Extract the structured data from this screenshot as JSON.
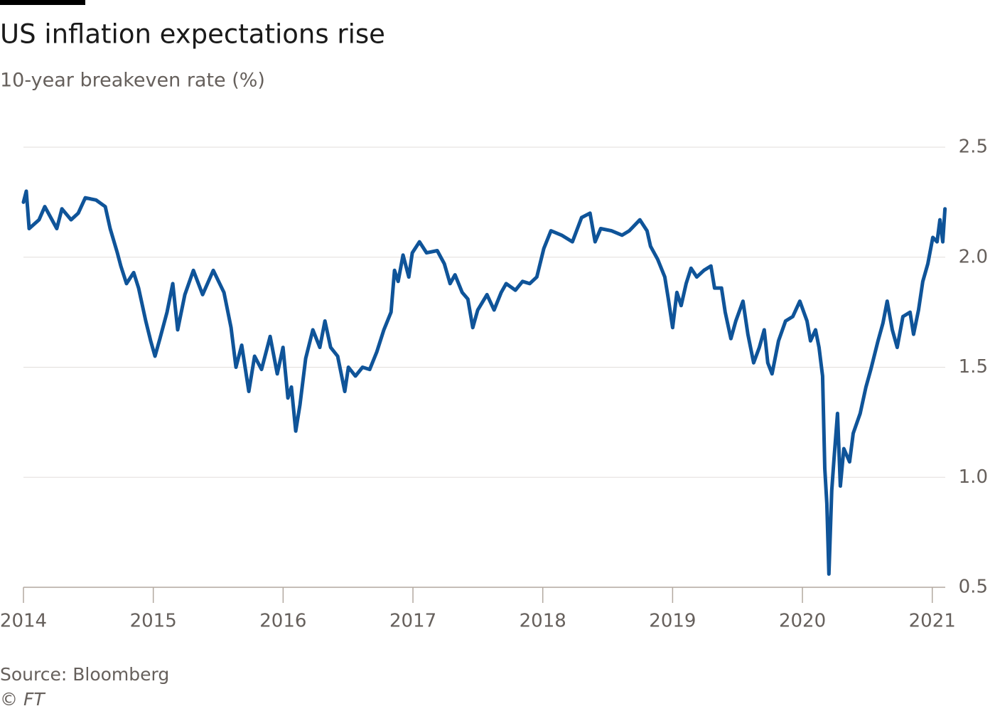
{
  "chart_data": {
    "type": "line",
    "title": "US inflation expectations rise",
    "subtitle": "10-year breakeven rate (%)",
    "source": "Source: Bloomberg",
    "credit": "© FT",
    "x": [
      2014.0,
      2014.022,
      2014.044,
      2014.12,
      2014.164,
      2014.257,
      2014.296,
      2014.367,
      2014.422,
      2014.476,
      2014.559,
      2014.63,
      2014.668,
      2014.723,
      2014.75,
      2014.794,
      2014.849,
      2014.887,
      2014.942,
      2014.98,
      2015.013,
      2015.051,
      2015.106,
      2015.15,
      2015.188,
      2015.243,
      2015.309,
      2015.38,
      2015.462,
      2015.544,
      2015.599,
      2015.637,
      2015.681,
      2015.736,
      2015.78,
      2015.834,
      2015.9,
      2015.955,
      2015.999,
      2016.037,
      2016.064,
      2016.097,
      2016.13,
      2016.174,
      2016.229,
      2016.283,
      2016.322,
      2016.366,
      2016.42,
      2016.475,
      2016.503,
      2016.557,
      2016.612,
      2016.667,
      2016.722,
      2016.776,
      2016.831,
      2016.858,
      2016.886,
      2016.924,
      2016.968,
      2016.995,
      2017.05,
      2017.105,
      2017.187,
      2017.242,
      2017.286,
      2017.324,
      2017.379,
      2017.423,
      2017.461,
      2017.499,
      2017.57,
      2017.625,
      2017.68,
      2017.718,
      2017.789,
      2017.844,
      2017.899,
      2017.954,
      2018.008,
      2018.063,
      2018.145,
      2018.228,
      2018.299,
      2018.364,
      2018.403,
      2018.446,
      2018.529,
      2018.611,
      2018.666,
      2018.748,
      2018.803,
      2018.83,
      2018.885,
      2018.94,
      2018.967,
      2019.0,
      2019.033,
      2019.066,
      2019.104,
      2019.142,
      2019.186,
      2019.241,
      2019.295,
      2019.323,
      2019.377,
      2019.405,
      2019.449,
      2019.487,
      2019.542,
      2019.58,
      2019.624,
      2019.668,
      2019.706,
      2019.733,
      2019.766,
      2019.816,
      2019.87,
      2019.925,
      2019.98,
      2020.035,
      2020.062,
      2020.101,
      2020.128,
      2020.155,
      2020.172,
      2020.188,
      2020.204,
      2020.226,
      2020.243,
      2020.27,
      2020.292,
      2020.319,
      2020.363,
      2020.391,
      2020.445,
      2020.489,
      2020.527,
      2020.582,
      2020.62,
      2020.653,
      2020.692,
      2020.73,
      2020.774,
      2020.829,
      2020.856,
      2020.894,
      2020.927,
      2020.966,
      2021.004,
      2021.037,
      2021.059,
      2021.081,
      2021.098
    ],
    "series": [
      {
        "name": "10-year breakeven rate",
        "color": "#0f5499",
        "values": [
          2.25,
          2.3,
          2.13,
          2.17,
          2.23,
          2.13,
          2.22,
          2.17,
          2.2,
          2.27,
          2.26,
          2.23,
          2.13,
          2.02,
          1.96,
          1.88,
          1.93,
          1.86,
          1.71,
          1.62,
          1.55,
          1.63,
          1.75,
          1.88,
          1.67,
          1.83,
          1.94,
          1.83,
          1.94,
          1.84,
          1.68,
          1.5,
          1.6,
          1.39,
          1.55,
          1.49,
          1.64,
          1.47,
          1.59,
          1.36,
          1.41,
          1.21,
          1.33,
          1.54,
          1.67,
          1.59,
          1.71,
          1.59,
          1.55,
          1.39,
          1.5,
          1.46,
          1.5,
          1.49,
          1.57,
          1.67,
          1.75,
          1.94,
          1.89,
          2.01,
          1.91,
          2.02,
          2.07,
          2.02,
          2.03,
          1.97,
          1.88,
          1.92,
          1.84,
          1.81,
          1.68,
          1.76,
          1.83,
          1.76,
          1.84,
          1.88,
          1.85,
          1.89,
          1.88,
          1.91,
          2.04,
          2.12,
          2.1,
          2.07,
          2.18,
          2.2,
          2.07,
          2.13,
          2.12,
          2.1,
          2.12,
          2.17,
          2.12,
          2.05,
          1.99,
          1.91,
          1.81,
          1.68,
          1.84,
          1.78,
          1.88,
          1.95,
          1.91,
          1.94,
          1.96,
          1.86,
          1.86,
          1.75,
          1.63,
          1.71,
          1.8,
          1.65,
          1.52,
          1.59,
          1.67,
          1.52,
          1.47,
          1.62,
          1.71,
          1.73,
          1.8,
          1.71,
          1.62,
          1.67,
          1.59,
          1.46,
          1.04,
          0.88,
          0.56,
          0.94,
          1.08,
          1.29,
          0.96,
          1.13,
          1.07,
          1.2,
          1.29,
          1.41,
          1.49,
          1.62,
          1.7,
          1.8,
          1.67,
          1.59,
          1.73,
          1.75,
          1.65,
          1.76,
          1.89,
          1.97,
          2.09,
          2.07,
          2.17,
          2.07,
          2.22
        ]
      }
    ],
    "xlim": [
      2014,
      2021.1
    ],
    "xticks": [
      2014,
      2015,
      2016,
      2017,
      2018,
      2019,
      2020,
      2021
    ],
    "ylim": [
      0.5,
      2.5
    ],
    "yticks": [
      0.5,
      {
        "value": 1,
        "label": "1.0"
      },
      1.5,
      {
        "value": 2,
        "label": "2.0"
      },
      2.5
    ],
    "grid": true
  }
}
